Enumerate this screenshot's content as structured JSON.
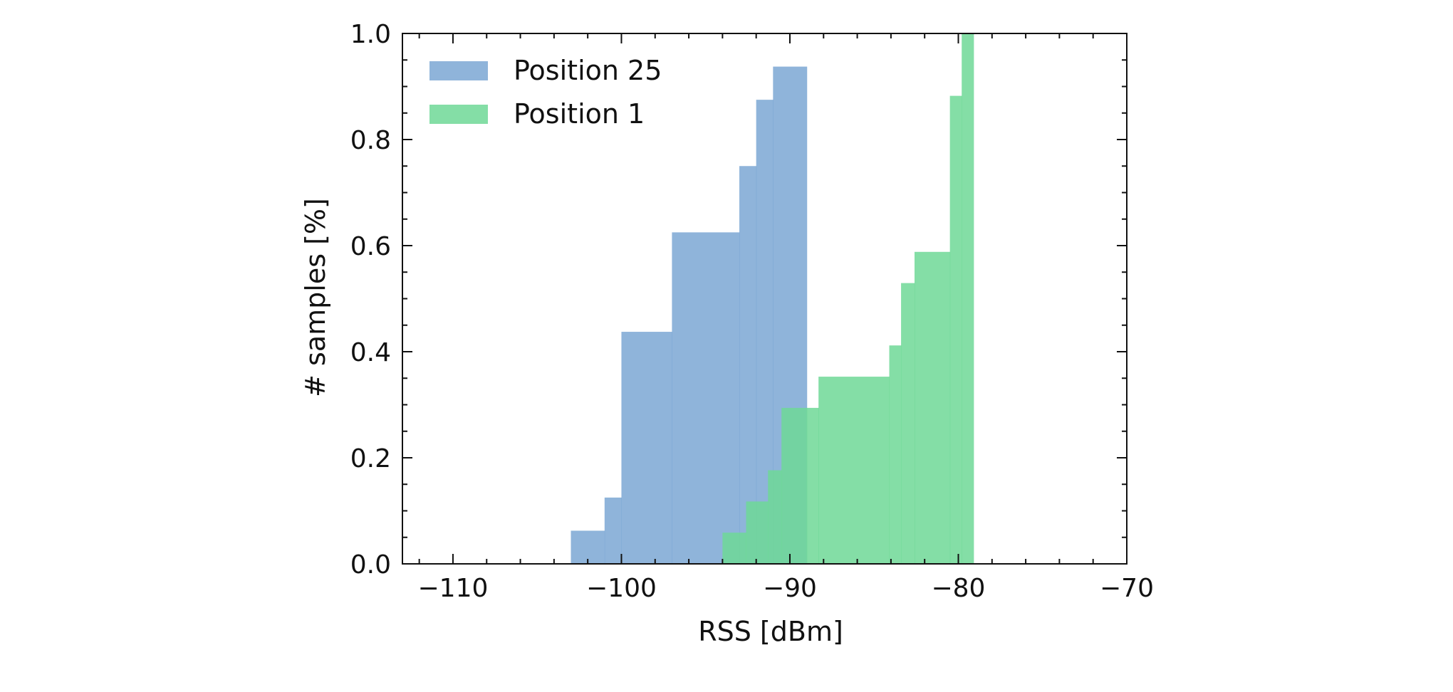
{
  "chart_data": {
    "type": "area",
    "subtype": "cumulative-step-histogram",
    "xlabel": "RSS [dBm]",
    "ylabel": "# samples [%]",
    "xlim": [
      -113,
      -70
    ],
    "ylim": [
      0,
      1.0
    ],
    "xticks": [
      -110,
      -100,
      -90,
      -80,
      -70
    ],
    "xtick_labels": [
      "−110",
      "−100",
      "−90",
      "−80",
      "−70"
    ],
    "yticks": [
      0.0,
      0.2,
      0.4,
      0.6,
      0.8,
      1.0
    ],
    "ytick_labels": [
      "0.0",
      "0.2",
      "0.4",
      "0.6",
      "0.8",
      "1.0"
    ],
    "grid": false,
    "legend_position": "upper-left",
    "series": [
      {
        "name": "Position 25",
        "color": "#7ba7d4",
        "edges": [
          -103,
          -101,
          -100,
          -97,
          -93,
          -92,
          -91,
          -89
        ],
        "values": [
          0.0625,
          0.125,
          0.4375,
          0.625,
          0.75,
          0.875,
          0.9375,
          1.0
        ]
      },
      {
        "name": "Position 1",
        "color": "#6fd896",
        "edges": [
          -94,
          -92.6,
          -91.3,
          -90.5,
          -89,
          -88.3,
          -84.1,
          -83.4,
          -82.6,
          -80.5,
          -79.8,
          -79.1
        ],
        "values": [
          0.0588,
          0.1176,
          0.1765,
          0.2941,
          0.2941,
          0.3529,
          0.4118,
          0.5294,
          0.5882,
          0.8824,
          1.0
        ]
      }
    ]
  }
}
